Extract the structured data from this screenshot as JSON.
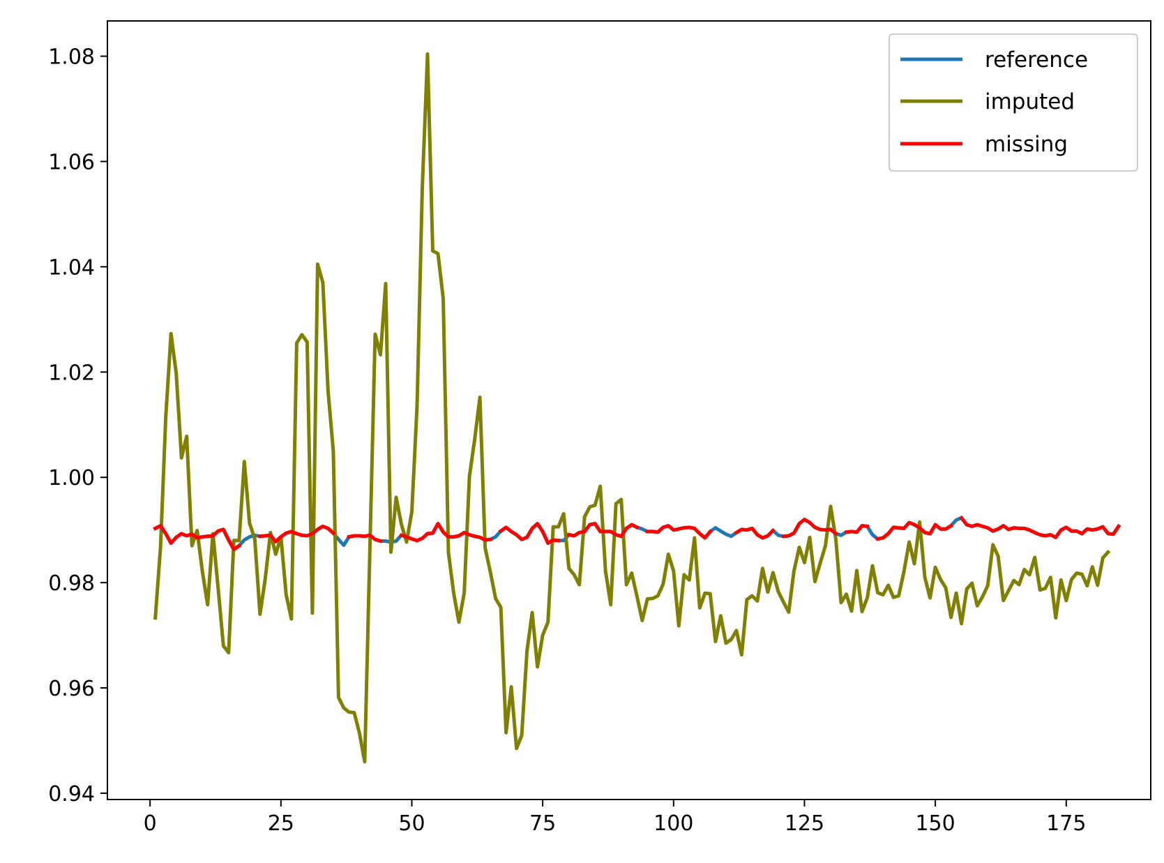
{
  "chart_data": {
    "type": "line",
    "title": "",
    "xlabel": "",
    "ylabel": "",
    "xlim": [
      -8.15,
      191.15
    ],
    "ylim": [
      0.9388,
      1.0867
    ],
    "grid": false,
    "legend_position": "upper right",
    "x_ticks": [
      0,
      25,
      50,
      75,
      100,
      125,
      150,
      175
    ],
    "x_tick_labels": [
      "0",
      "25",
      "50",
      "75",
      "100",
      "125",
      "150",
      "175"
    ],
    "y_ticks": [
      0.94,
      0.96,
      0.98,
      1.0,
      1.02,
      1.04,
      1.06,
      1.08
    ],
    "y_tick_labels": [
      "0.94",
      "0.96",
      "0.98",
      "1.00",
      "1.02",
      "1.04",
      "1.06",
      "1.08"
    ],
    "legend": {
      "reference": "reference",
      "imputed": "imputed",
      "missing": "missing"
    },
    "colors": {
      "reference": "#1f77b4",
      "imputed": "#808000",
      "missing": "#ff0000"
    },
    "series": [
      {
        "name": "reference",
        "x_start": 1,
        "values": [
          0.9903,
          0.9908,
          0.9893,
          0.9875,
          0.9886,
          0.9893,
          0.9889,
          0.9892,
          0.9885,
          0.9887,
          0.9888,
          0.9889,
          0.9898,
          0.9901,
          0.9881,
          0.9863,
          0.987,
          0.9881,
          0.9887,
          0.989,
          0.9888,
          0.9889,
          0.989,
          0.9878,
          0.9887,
          0.9894,
          0.9897,
          0.9893,
          0.989,
          0.9889,
          0.9893,
          0.9901,
          0.9907,
          0.9903,
          0.9894,
          0.9882,
          0.9871,
          0.9887,
          0.9889,
          0.9889,
          0.9888,
          0.989,
          0.9882,
          0.9879,
          0.9879,
          0.9877,
          0.9879,
          0.989,
          0.9887,
          0.9883,
          0.988,
          0.9884,
          0.9893,
          0.9894,
          0.9912,
          0.9896,
          0.9887,
          0.9887,
          0.9889,
          0.9895,
          0.9891,
          0.9888,
          0.9886,
          0.9881,
          0.9882,
          0.9887,
          0.9898,
          0.9905,
          0.9897,
          0.9891,
          0.9882,
          0.9886,
          0.9903,
          0.9912,
          0.9897,
          0.9875,
          0.9881,
          0.988,
          0.988,
          0.9891,
          0.9889,
          0.9895,
          0.9897,
          0.991,
          0.9912,
          0.9897,
          0.9897,
          0.9897,
          0.9891,
          0.9888,
          0.9903,
          0.991,
          0.9905,
          0.9902,
          0.9897,
          0.9897,
          0.9896,
          0.9905,
          0.9908,
          0.99,
          0.9902,
          0.9904,
          0.9905,
          0.9903,
          0.9893,
          0.9885,
          0.9897,
          0.9904,
          0.9898,
          0.9892,
          0.9888,
          0.9895,
          0.9901,
          0.99,
          0.9903,
          0.9891,
          0.9885,
          0.9889,
          0.9899,
          0.989,
          0.9888,
          0.9889,
          0.9894,
          0.9912,
          0.992,
          0.9914,
          0.9905,
          0.9901,
          0.99,
          0.9901,
          0.9893,
          0.989,
          0.9896,
          0.9897,
          0.9896,
          0.9908,
          0.9907,
          0.9891,
          0.9883,
          0.9885,
          0.9893,
          0.9905,
          0.9904,
          0.9903,
          0.9914,
          0.991,
          0.9904,
          0.9895,
          0.9893,
          0.991,
          0.9902,
          0.9902,
          0.9908,
          0.9919,
          0.9923,
          0.991,
          0.9907,
          0.991,
          0.9907,
          0.9904,
          0.9898,
          0.9902,
          0.9908,
          0.9901,
          0.9904,
          0.9903,
          0.9903,
          0.99,
          0.9895,
          0.9891,
          0.9889,
          0.9891,
          0.9886,
          0.99,
          0.9905,
          0.9898,
          0.9898,
          0.9893,
          0.9902,
          0.99,
          0.9902,
          0.9906,
          0.9893,
          0.9892,
          0.9907
        ]
      },
      {
        "name": "imputed",
        "x_start": 1,
        "values": [
          0.9733,
          0.9868,
          1.0115,
          1.0273,
          1.0197,
          1.0037,
          1.0078,
          0.987,
          0.9899,
          0.9821,
          0.9758,
          0.9893,
          0.9789,
          0.968,
          0.9667,
          0.988,
          0.988,
          1.003,
          0.9913,
          0.9883,
          0.974,
          0.9807,
          0.9895,
          0.9854,
          0.9887,
          0.9777,
          0.9731,
          1.0255,
          1.0271,
          1.0257,
          0.9742,
          1.0405,
          1.037,
          1.0164,
          1.005,
          0.9582,
          0.9562,
          0.9554,
          0.9553,
          0.9514,
          0.946,
          0.9866,
          1.0272,
          1.0233,
          1.0368,
          0.9858,
          0.9962,
          0.9911,
          0.9877,
          0.9935,
          1.0135,
          1.055,
          1.0804,
          1.043,
          1.0425,
          1.034,
          0.9857,
          0.978,
          0.9725,
          0.978,
          1.0002,
          1.0072,
          1.0152,
          0.9866,
          0.982,
          0.977,
          0.9753,
          0.9515,
          0.9602,
          0.9485,
          0.951,
          0.967,
          0.9743,
          0.964,
          0.97,
          0.9725,
          0.9906,
          0.9906,
          0.9931,
          0.9827,
          0.9815,
          0.9796,
          0.9925,
          0.9944,
          0.9947,
          0.9983,
          0.9822,
          0.9758,
          0.995,
          0.9958,
          0.9796,
          0.9818,
          0.9774,
          0.9728,
          0.9769,
          0.977,
          0.9775,
          0.9797,
          0.9854,
          0.9822,
          0.9718,
          0.9815,
          0.9805,
          0.9885,
          0.9752,
          0.978,
          0.9779,
          0.9688,
          0.9737,
          0.9685,
          0.9692,
          0.9709,
          0.9663,
          0.9768,
          0.9775,
          0.9765,
          0.9827,
          0.9782,
          0.9819,
          0.9783,
          0.9763,
          0.9744,
          0.9822,
          0.9867,
          0.9838,
          0.9886,
          0.9802,
          0.9837,
          0.987,
          0.9945,
          0.9882,
          0.9762,
          0.9778,
          0.9746,
          0.9823,
          0.9745,
          0.9771,
          0.9832,
          0.9781,
          0.9777,
          0.9795,
          0.9772,
          0.9775,
          0.9821,
          0.9877,
          0.9836,
          0.9915,
          0.981,
          0.9771,
          0.9829,
          0.9806,
          0.979,
          0.9734,
          0.978,
          0.9722,
          0.9788,
          0.9799,
          0.9756,
          0.9773,
          0.9794,
          0.9872,
          0.985,
          0.9766,
          0.9785,
          0.9804,
          0.9796,
          0.9825,
          0.9815,
          0.9848,
          0.9786,
          0.9789,
          0.981,
          0.9733,
          0.9805,
          0.9766,
          0.9806,
          0.9818,
          0.9816,
          0.9794,
          0.983,
          0.9795,
          0.9847,
          0.9858
        ]
      },
      {
        "name": "missing",
        "x_start": 1,
        "values": [
          0.9903,
          0.9908,
          0.9893,
          0.9875,
          0.9886,
          0.9893,
          0.9889,
          0.9892,
          0.9885,
          0.9887,
          0.9888,
          0.9889,
          0.9898,
          0.9901,
          0.9881,
          0.9863,
          0.987,
          null,
          null,
          null,
          0.9888,
          0.9889,
          0.989,
          0.9878,
          0.9887,
          0.9894,
          0.9897,
          0.9893,
          0.989,
          0.9889,
          0.9893,
          0.9901,
          0.9907,
          0.9903,
          0.9894,
          null,
          null,
          0.9887,
          0.9889,
          0.9889,
          0.9888,
          0.989,
          0.9882,
          0.9879,
          null,
          null,
          null,
          0.989,
          0.9887,
          0.9883,
          0.988,
          0.9884,
          0.9893,
          0.9894,
          0.9912,
          0.9896,
          0.9887,
          0.9887,
          0.9889,
          0.9895,
          0.9891,
          0.9888,
          0.9886,
          0.9881,
          0.9882,
          null,
          0.9898,
          0.9905,
          0.9897,
          0.9891,
          0.9882,
          0.9886,
          0.9903,
          0.9912,
          0.9897,
          0.9875,
          0.9881,
          0.988,
          null,
          0.9891,
          0.9889,
          0.9895,
          0.9897,
          0.991,
          0.9912,
          0.9897,
          0.9897,
          0.9897,
          0.9891,
          0.9888,
          0.9903,
          0.991,
          0.9905,
          null,
          0.9897,
          0.9897,
          0.9896,
          0.9905,
          0.9908,
          0.99,
          0.9902,
          0.9904,
          0.9905,
          0.9903,
          0.9893,
          0.9885,
          0.9897,
          null,
          null,
          0.9892,
          null,
          0.9895,
          0.9901,
          0.99,
          0.9903,
          0.9891,
          0.9885,
          0.9889,
          0.9899,
          null,
          0.9888,
          0.9889,
          0.9894,
          0.9912,
          0.992,
          0.9914,
          0.9905,
          0.9901,
          0.99,
          0.9901,
          0.9893,
          null,
          0.9896,
          0.9897,
          0.9896,
          0.9908,
          0.9907,
          null,
          0.9883,
          0.9885,
          0.9893,
          0.9905,
          0.9904,
          0.9903,
          0.9914,
          0.991,
          0.9904,
          0.9895,
          0.9893,
          0.991,
          0.9902,
          0.9902,
          0.9908,
          null,
          0.9923,
          0.991,
          0.9907,
          0.991,
          0.9907,
          0.9904,
          0.9898,
          0.9902,
          0.9908,
          0.9901,
          0.9904,
          0.9903,
          0.9903,
          0.99,
          0.9895,
          0.9891,
          0.9889,
          0.9891,
          0.9886,
          0.99,
          0.9905,
          0.9898,
          0.9898,
          0.9893,
          0.9902,
          0.99,
          0.9902,
          0.9906,
          0.9893,
          0.9892,
          0.9907
        ]
      }
    ]
  }
}
